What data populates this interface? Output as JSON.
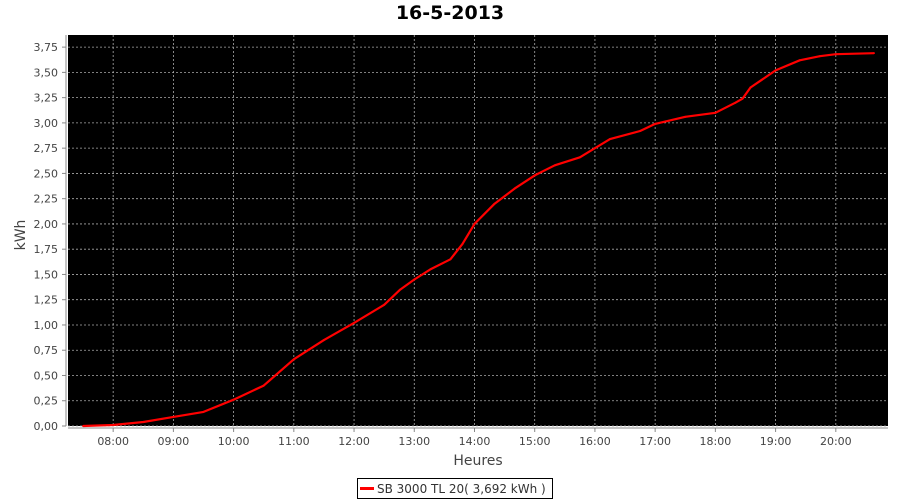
{
  "chart_data": {
    "type": "line",
    "title": "16-5-2013",
    "xlabel": "Heures",
    "ylabel": "kWh",
    "xlim": [
      "07:15",
      "20:52"
    ],
    "ylim": [
      0,
      3.87
    ],
    "x_ticks": [
      "08:00",
      "09:00",
      "10:00",
      "11:00",
      "12:00",
      "13:00",
      "14:00",
      "15:00",
      "16:00",
      "17:00",
      "18:00",
      "19:00",
      "20:00"
    ],
    "y_ticks": [
      "0,00",
      "0,25",
      "0,50",
      "0,75",
      "1,00",
      "1,25",
      "1,50",
      "1,75",
      "2,00",
      "2,25",
      "2,50",
      "2,75",
      "3,00",
      "3,25",
      "3,50",
      "3,75"
    ],
    "grid": true,
    "background": "#000000",
    "legend_position": "bottom",
    "series": [
      {
        "name": "SB 3000 TL 20( 3,692 kWh )",
        "color": "#ff0000",
        "x": [
          "07:30",
          "08:00",
          "08:30",
          "09:00",
          "09:30",
          "10:00",
          "10:30",
          "11:00",
          "11:30",
          "12:00",
          "12:30",
          "12:46",
          "13:00",
          "13:16",
          "13:36",
          "13:48",
          "14:00",
          "14:20",
          "14:40",
          "15:00",
          "15:20",
          "15:45",
          "16:00",
          "16:15",
          "16:45",
          "17:00",
          "17:30",
          "18:00",
          "18:20",
          "18:27",
          "18:35",
          "19:00",
          "19:24",
          "19:44",
          "20:00",
          "20:38"
        ],
        "y": [
          0,
          0.01,
          0.04,
          0.09,
          0.14,
          0.26,
          0.4,
          0.66,
          0.85,
          1.02,
          1.2,
          1.35,
          1.45,
          1.55,
          1.65,
          1.8,
          2.0,
          2.2,
          2.35,
          2.48,
          2.58,
          2.66,
          2.75,
          2.84,
          2.92,
          2.99,
          3.06,
          3.1,
          3.2,
          3.24,
          3.35,
          3.52,
          3.62,
          3.66,
          3.68,
          3.69
        ]
      }
    ]
  }
}
